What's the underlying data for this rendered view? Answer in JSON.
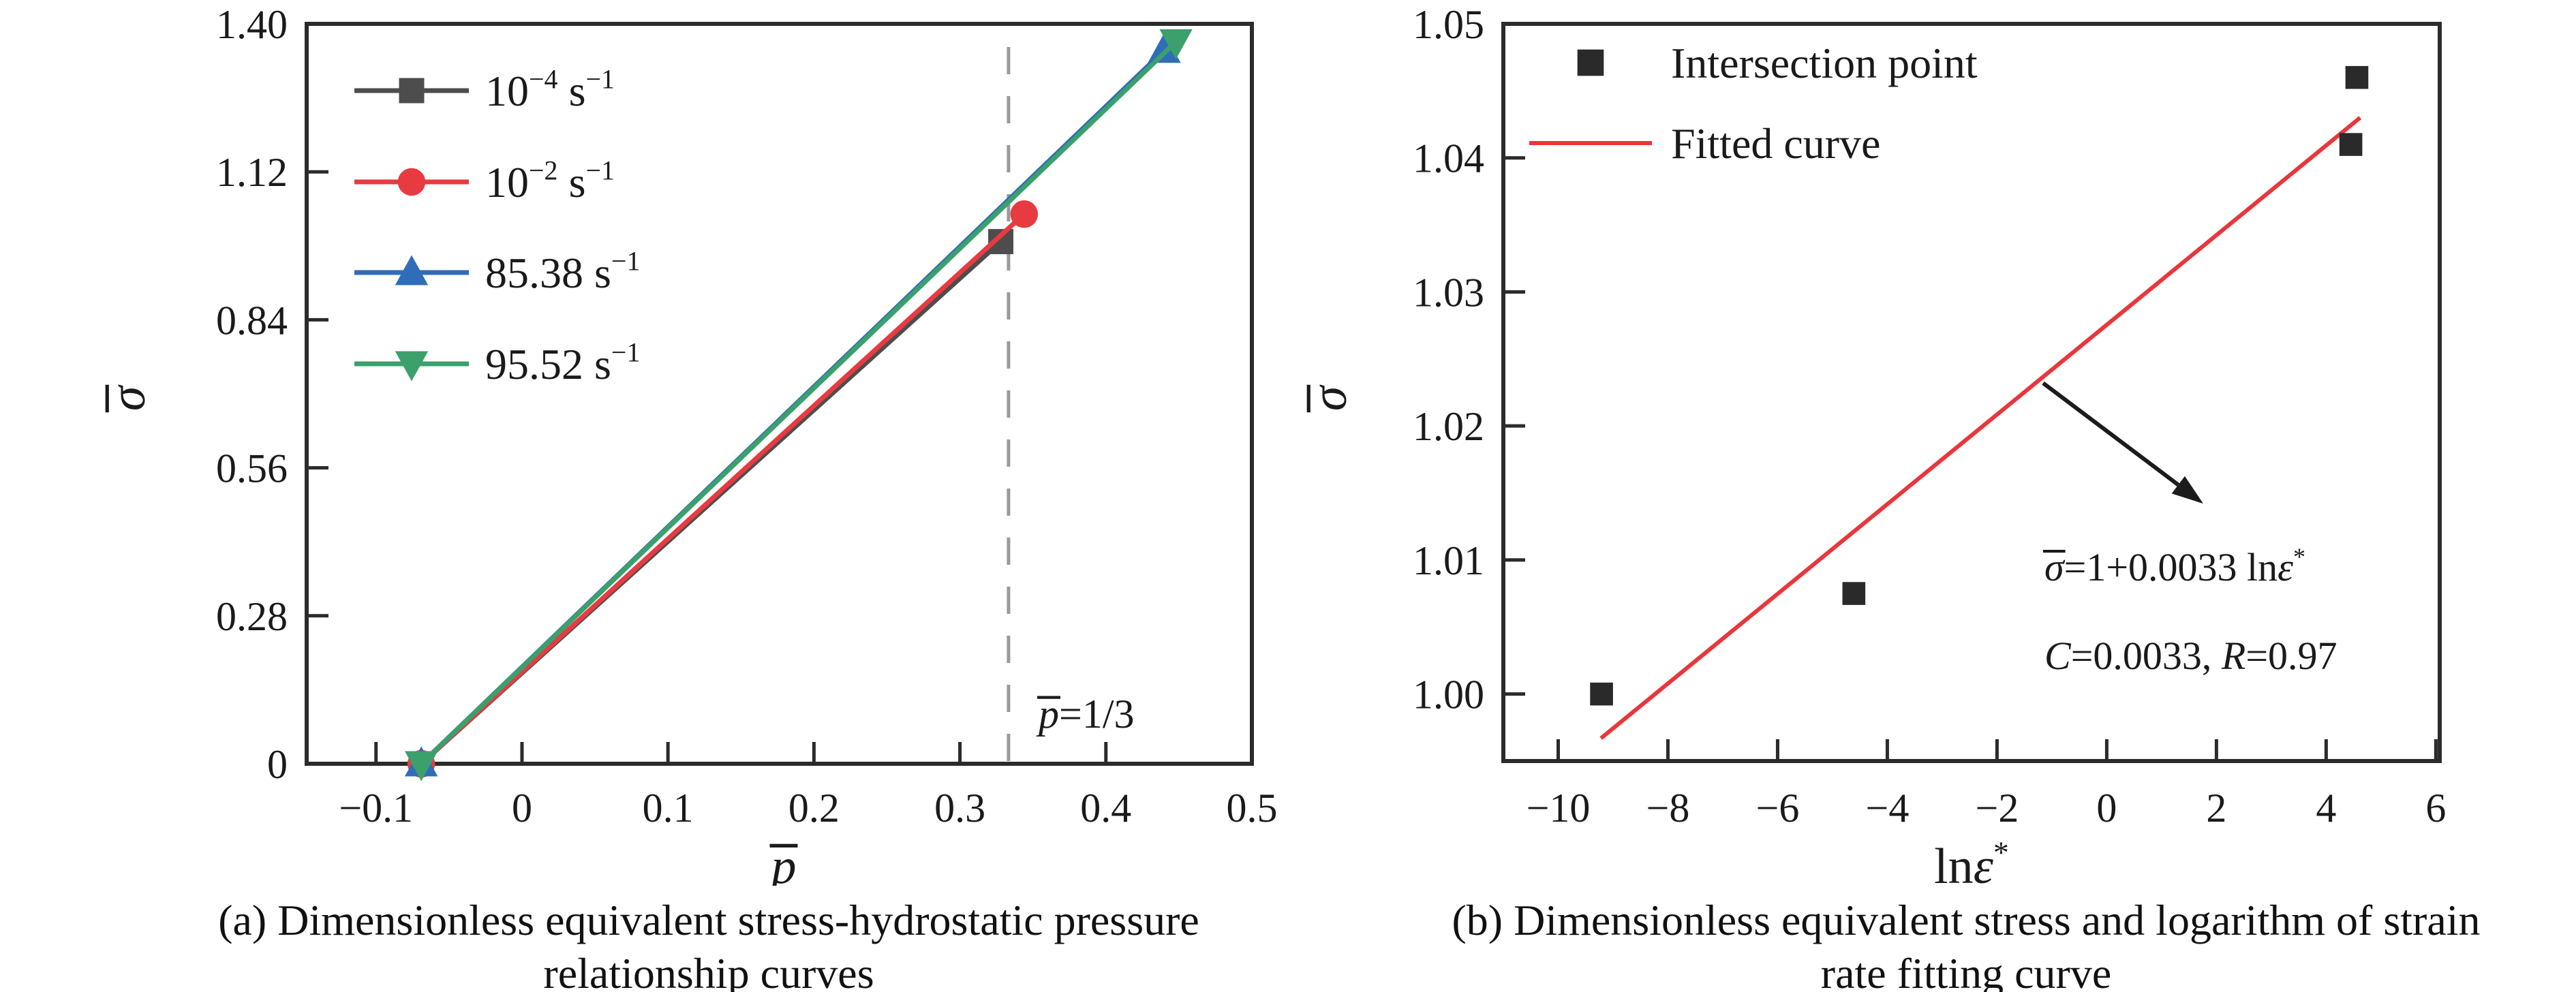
{
  "colors": {
    "axis": "#2b2b2b",
    "text": "#1a1a1a",
    "dashed_guide": "#9a9a9a",
    "background": "#ffffff"
  },
  "chart_data": [
    {
      "id": "a",
      "type": "line",
      "caption": [
        "(a) Dimensionless equivalent stress-hydrostatic pressure",
        "relationship curves"
      ],
      "xlabel_runs": [
        {
          "t": "p",
          "i": true,
          "bar": true
        }
      ],
      "ylabel_runs": [
        {
          "t": "σ",
          "i": true,
          "bar": true
        }
      ],
      "x_range": [
        -0.1475,
        0.5
      ],
      "y_range": [
        0,
        1.4
      ],
      "x_ticks": {
        "values": [
          -0.1,
          0,
          0.1,
          0.2,
          0.3,
          0.4,
          0.5
        ],
        "labels": [
          "−0.1",
          "0",
          "0.1",
          "0.2",
          "0.3",
          "0.4",
          "0.5"
        ]
      },
      "y_ticks": {
        "values": [
          0,
          0.28,
          0.56,
          0.84,
          1.12,
          1.4
        ],
        "labels": [
          "0",
          "0.28",
          "0.56",
          "0.84",
          "1.12",
          "1.40"
        ]
      },
      "grid": false,
      "legend_position": "upper-left",
      "series": [
        {
          "name": "strain-rate-1e-4",
          "marker": "square",
          "color": "#4d4d4d",
          "label_runs": [
            {
              "t": "10"
            },
            {
              "t": "−4",
              "sup": true
            },
            {
              "t": " s"
            },
            {
              "t": "−1",
              "sup": true
            }
          ],
          "points": [
            [
              -0.069,
              0
            ],
            [
              0.328,
              0.988
            ]
          ]
        },
        {
          "name": "strain-rate-1e-2",
          "marker": "circle",
          "color": "#e73b41",
          "label_runs": [
            {
              "t": "10"
            },
            {
              "t": "−2",
              "sup": true
            },
            {
              "t": " s"
            },
            {
              "t": "−1",
              "sup": true
            }
          ],
          "points": [
            [
              -0.069,
              0
            ],
            [
              0.344,
              1.04
            ]
          ]
        },
        {
          "name": "strain-rate-85.38",
          "marker": "triangle-up",
          "color": "#2f6db8",
          "label_runs": [
            {
              "t": "85.38 s"
            },
            {
              "t": "−1",
              "sup": true
            }
          ],
          "points": [
            [
              -0.069,
              0
            ],
            [
              0.44,
              1.35
            ]
          ]
        },
        {
          "name": "strain-rate-95.52",
          "marker": "triangle-down",
          "color": "#3ba06c",
          "label_runs": [
            {
              "t": "95.52 s"
            },
            {
              "t": "−1",
              "sup": true
            }
          ],
          "points": [
            [
              -0.069,
              0
            ],
            [
              0.448,
              1.366
            ]
          ]
        }
      ],
      "vline": {
        "x": 0.3333,
        "style": "dashed",
        "color": "#9a9a9a",
        "label_runs": [
          {
            "t": "p",
            "i": true,
            "bar": true
          },
          {
            "t": "=1/3"
          }
        ]
      }
    },
    {
      "id": "b",
      "type": "scatter",
      "caption": [
        "(b) Dimensionless equivalent stress and logarithm of strain",
        "rate fitting curve"
      ],
      "xlabel_runs": [
        {
          "t": "ln"
        },
        {
          "t": "ε",
          "i": true
        },
        {
          "t": "*",
          "sup": true
        }
      ],
      "ylabel_runs": [
        {
          "t": "σ",
          "i": true,
          "bar": true
        }
      ],
      "x_range": [
        -11,
        6.07
      ],
      "y_range": [
        0.995,
        1.05
      ],
      "x_ticks": {
        "values": [
          -10,
          -8,
          -6,
          -4,
          -2,
          0,
          2,
          4,
          6
        ],
        "labels": [
          "−10",
          "−8",
          "−6",
          "−4",
          "−2",
          "0",
          "2",
          "4",
          "6"
        ]
      },
      "y_ticks": {
        "values": [
          1.0,
          1.01,
          1.02,
          1.03,
          1.04,
          1.05
        ],
        "labels": [
          "1.00",
          "1.01",
          "1.02",
          "1.03",
          "1.04",
          "1.05"
        ]
      },
      "grid": false,
      "legend_position": "upper-left",
      "points": {
        "label": "Intersection point",
        "marker": "square",
        "color": "#2a2a2a",
        "data": [
          [
            -9.21,
            1.0
          ],
          [
            -4.61,
            1.0075
          ],
          [
            4.45,
            1.041
          ],
          [
            4.56,
            1.046
          ]
        ]
      },
      "fit_line": {
        "label": "Fitted curve",
        "color": "#e8373c",
        "endpoints": [
          [
            -9.22,
            0.9967
          ],
          [
            4.62,
            1.043
          ]
        ]
      },
      "annotation": {
        "arrow_from": [
          -1.16,
          1.0232
        ],
        "arrow_to": [
          1.76,
          1.0142
        ],
        "line1_runs": [
          {
            "t": "σ",
            "i": true,
            "bar": true
          },
          {
            "t": "=1+0.0033 ln"
          },
          {
            "t": "ε",
            "i": true
          },
          {
            "t": "*",
            "sup": true
          }
        ],
        "line2_runs": [
          {
            "t": "C",
            "i": true
          },
          {
            "t": "=0.0033, "
          },
          {
            "t": "R",
            "i": true
          },
          {
            "t": "=0.97"
          }
        ]
      }
    }
  ]
}
